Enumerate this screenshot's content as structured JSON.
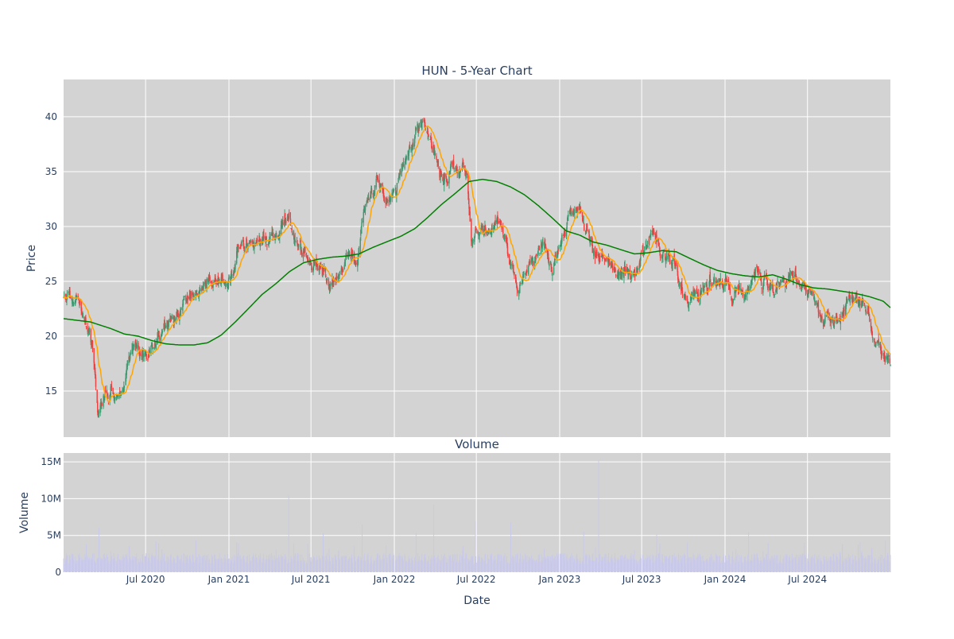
{
  "chart_data": [
    {
      "type": "candlestick",
      "title": "HUN - 5-Year Chart",
      "xlabel": "",
      "ylabel": "Price",
      "ylim": [
        10.8,
        43.4
      ],
      "yticks": [
        15,
        20,
        25,
        30,
        35,
        40
      ],
      "grid": true,
      "plot_bg": "#d3d3d3",
      "colors": {
        "up": "#3d9970",
        "down": "#ef3f3f",
        "ma_short": "#ffa500",
        "ma_long": "#008000"
      },
      "anchors_long_ma": [
        [
          "2020-01-02",
          21.6
        ],
        [
          "2020-03-01",
          21.3
        ],
        [
          "2020-04-15",
          20.7
        ],
        [
          "2020-05-15",
          20.2
        ],
        [
          "2020-06-15",
          20.0
        ],
        [
          "2020-07-15",
          19.6
        ],
        [
          "2020-08-15",
          19.3
        ],
        [
          "2020-09-15",
          19.2
        ],
        [
          "2020-10-15",
          19.2
        ],
        [
          "2020-11-15",
          19.4
        ],
        [
          "2020-12-15",
          20.1
        ],
        [
          "2021-01-15",
          21.3
        ],
        [
          "2021-02-15",
          22.6
        ],
        [
          "2021-03-15",
          23.8
        ],
        [
          "2021-04-15",
          24.8
        ],
        [
          "2021-05-15",
          25.9
        ],
        [
          "2021-06-15",
          26.7
        ],
        [
          "2021-07-15",
          27.0
        ],
        [
          "2021-08-15",
          27.2
        ],
        [
          "2021-09-15",
          27.3
        ],
        [
          "2021-10-15",
          27.5
        ],
        [
          "2021-11-15",
          28.1
        ],
        [
          "2021-12-15",
          28.6
        ],
        [
          "2022-01-15",
          29.1
        ],
        [
          "2022-02-15",
          29.8
        ],
        [
          "2022-03-15",
          30.8
        ],
        [
          "2022-04-15",
          32.0
        ],
        [
          "2022-05-15",
          33.0
        ],
        [
          "2022-06-15",
          34.1
        ],
        [
          "2022-07-15",
          34.3
        ],
        [
          "2022-08-15",
          34.1
        ],
        [
          "2022-09-15",
          33.6
        ],
        [
          "2022-10-15",
          32.9
        ],
        [
          "2022-11-15",
          31.9
        ],
        [
          "2022-12-15",
          30.8
        ],
        [
          "2023-01-15",
          29.6
        ],
        [
          "2023-02-15",
          29.2
        ],
        [
          "2023-03-15",
          28.6
        ],
        [
          "2023-04-15",
          28.3
        ],
        [
          "2023-05-15",
          27.9
        ],
        [
          "2023-06-15",
          27.5
        ],
        [
          "2023-07-15",
          27.6
        ],
        [
          "2023-08-15",
          27.8
        ],
        [
          "2023-09-15",
          27.7
        ],
        [
          "2023-10-15",
          27.1
        ],
        [
          "2023-11-15",
          26.5
        ],
        [
          "2023-12-15",
          26.0
        ],
        [
          "2024-01-15",
          25.7
        ],
        [
          "2024-02-15",
          25.5
        ],
        [
          "2024-03-15",
          25.4
        ],
        [
          "2024-04-15",
          25.6
        ],
        [
          "2024-05-15",
          25.2
        ],
        [
          "2024-06-15",
          24.7
        ],
        [
          "2024-07-15",
          24.4
        ],
        [
          "2024-08-15",
          24.3
        ],
        [
          "2024-09-15",
          24.1
        ],
        [
          "2024-10-15",
          23.9
        ],
        [
          "2024-11-15",
          23.6
        ],
        [
          "2024-12-15",
          23.2
        ],
        [
          "2024-12-31",
          22.6
        ]
      ],
      "anchors_price": [
        [
          "2020-01-02",
          24.0
        ],
        [
          "2020-01-20",
          23.1
        ],
        [
          "2020-02-05",
          23.3
        ],
        [
          "2020-02-20",
          21.0
        ],
        [
          "2020-03-05",
          19.0
        ],
        [
          "2020-03-18",
          12.5
        ],
        [
          "2020-04-01",
          14.2
        ],
        [
          "2020-04-15",
          15.5
        ],
        [
          "2020-05-01",
          15.2
        ],
        [
          "2020-05-15",
          16.0
        ],
        [
          "2020-06-01",
          19.0
        ],
        [
          "2020-06-10",
          19.5
        ],
        [
          "2020-06-25",
          18.2
        ],
        [
          "2020-07-15",
          18.5
        ],
        [
          "2020-08-01",
          20.0
        ],
        [
          "2020-08-20",
          21.5
        ],
        [
          "2020-09-15",
          22.5
        ],
        [
          "2020-10-15",
          24.0
        ],
        [
          "2020-11-10",
          25.0
        ],
        [
          "2020-12-15",
          25.2
        ],
        [
          "2021-01-10",
          25.0
        ],
        [
          "2021-01-20",
          28.0
        ],
        [
          "2021-02-10",
          28.3
        ],
        [
          "2021-03-10",
          28.7
        ],
        [
          "2021-04-10",
          28.8
        ],
        [
          "2021-05-01",
          29.3
        ],
        [
          "2021-05-10",
          31.0
        ],
        [
          "2021-05-20",
          29.0
        ],
        [
          "2021-06-10",
          28.0
        ],
        [
          "2021-06-25",
          27.0
        ],
        [
          "2021-07-20",
          26.5
        ],
        [
          "2021-08-15",
          25.0
        ],
        [
          "2021-09-15",
          26.5
        ],
        [
          "2021-10-10",
          26.8
        ],
        [
          "2021-10-20",
          30.0
        ],
        [
          "2021-11-10",
          33.0
        ],
        [
          "2021-11-25",
          34.0
        ],
        [
          "2021-12-10",
          32.5
        ],
        [
          "2022-01-01",
          33.0
        ],
        [
          "2022-01-15",
          36.0
        ],
        [
          "2022-02-01",
          36.5
        ],
        [
          "2022-02-15",
          38.0
        ],
        [
          "2022-03-01",
          40.0
        ],
        [
          "2022-03-15",
          38.0
        ],
        [
          "2022-04-01",
          37.5
        ],
        [
          "2022-04-20",
          34.0
        ],
        [
          "2022-05-10",
          35.0
        ],
        [
          "2022-05-25",
          35.5
        ],
        [
          "2022-06-10",
          35.0
        ],
        [
          "2022-06-20",
          29.0
        ],
        [
          "2022-07-10",
          29.0
        ],
        [
          "2022-08-01",
          29.5
        ],
        [
          "2022-08-20",
          30.0
        ],
        [
          "2022-09-15",
          26.5
        ],
        [
          "2022-10-01",
          25.0
        ],
        [
          "2022-10-20",
          26.0
        ],
        [
          "2022-11-15",
          28.0
        ],
        [
          "2022-12-10",
          27.5
        ],
        [
          "2023-01-01",
          27.5
        ],
        [
          "2023-01-20",
          30.0
        ],
        [
          "2023-02-10",
          32.0
        ],
        [
          "2023-03-01",
          30.0
        ],
        [
          "2023-03-20",
          27.0
        ],
        [
          "2023-04-20",
          27.0
        ],
        [
          "2023-05-20",
          26.0
        ],
        [
          "2023-06-15",
          25.5
        ],
        [
          "2023-07-10",
          27.5
        ],
        [
          "2023-08-01",
          29.0
        ],
        [
          "2023-08-20",
          27.5
        ],
        [
          "2023-09-10",
          27.5
        ],
        [
          "2023-10-01",
          24.0
        ],
        [
          "2023-10-25",
          23.0
        ],
        [
          "2023-11-20",
          24.5
        ],
        [
          "2023-12-20",
          25.5
        ],
        [
          "2024-01-15",
          24.5
        ],
        [
          "2024-02-15",
          24.0
        ],
        [
          "2024-03-01",
          25.0
        ],
        [
          "2024-03-20",
          26.0
        ],
        [
          "2024-04-20",
          24.0
        ],
        [
          "2024-05-20",
          25.0
        ],
        [
          "2024-06-20",
          24.5
        ],
        [
          "2024-07-20",
          23.0
        ],
        [
          "2024-08-05",
          21.0
        ],
        [
          "2024-08-25",
          21.5
        ],
        [
          "2024-09-20",
          22.5
        ],
        [
          "2024-10-10",
          24.0
        ],
        [
          "2024-11-01",
          23.5
        ],
        [
          "2024-11-20",
          20.0
        ],
        [
          "2024-12-10",
          19.5
        ],
        [
          "2024-12-31",
          17.8
        ]
      ]
    },
    {
      "type": "bar",
      "title": "Volume",
      "xlabel": "Date",
      "ylabel": "Volume",
      "ylim": [
        0,
        16200000
      ],
      "yticks": [
        0,
        5000000,
        10000000,
        15000000
      ],
      "ytick_labels": [
        "0",
        "5M",
        "10M",
        "15M"
      ],
      "xlim": [
        "2020-01-02",
        "2024-12-31"
      ],
      "xtick_dates": [
        "2020-07-01",
        "2021-01-01",
        "2021-07-01",
        "2022-01-01",
        "2022-07-01",
        "2023-01-01",
        "2023-07-01",
        "2024-01-01",
        "2024-07-01"
      ],
      "xtick_labels": [
        "Jul 2020",
        "Jan 2021",
        "Jul 2021",
        "Jan 2022",
        "Jul 2022",
        "Jan 2023",
        "Jul 2023",
        "Jan 2024",
        "Jul 2024"
      ],
      "grid": true,
      "plot_bg": "#d3d3d3",
      "bar_color": "#c8c8ea",
      "baseline_volume": 2000000,
      "volume_spikes": [
        [
          "2020-03-20",
          6000000
        ],
        [
          "2020-07-24",
          4200000
        ],
        [
          "2020-10-20",
          4300000
        ],
        [
          "2021-05-13",
          10500000
        ],
        [
          "2021-07-28",
          5300000
        ],
        [
          "2021-10-22",
          6500000
        ],
        [
          "2022-02-18",
          5300000
        ],
        [
          "2022-03-29",
          9200000
        ],
        [
          "2022-06-29",
          6900000
        ],
        [
          "2022-09-15",
          6800000
        ],
        [
          "2023-02-23",
          5500000
        ],
        [
          "2023-03-28",
          15200000
        ],
        [
          "2023-08-03",
          5100000
        ],
        [
          "2024-02-22",
          5500000
        ],
        [
          "2024-06-24",
          4000000
        ],
        [
          "2024-10-25",
          4100000
        ],
        [
          "2024-12-20",
          4300000
        ]
      ]
    }
  ]
}
